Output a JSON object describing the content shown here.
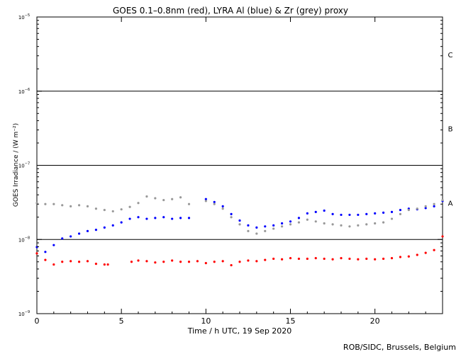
{
  "chart_data": {
    "type": "scatter",
    "title": "GOES 0.1–0.8nm (red), LYRA Al (blue) & Zr (grey) proxy",
    "xlabel": "Time / h UTC, 19 Sep 2020",
    "ylabel": "GOES Irradiance / (W m⁻²)",
    "x_ticks": [
      0,
      5,
      10,
      15,
      20
    ],
    "y_ticks": [
      {
        "exp": -9,
        "label": "10",
        "sup": "−9"
      },
      {
        "exp": -8,
        "label": "10",
        "sup": "−8"
      },
      {
        "exp": -7,
        "label": "10",
        "sup": "−7"
      },
      {
        "exp": -6,
        "label": "10",
        "sup": "−6"
      },
      {
        "exp": -5,
        "label": "10",
        "sup": "−5"
      }
    ],
    "xlim": [
      0,
      24
    ],
    "ylim_log10": [
      -9,
      -5
    ],
    "y_scale": "log",
    "flare_class_lines": [
      {
        "label": "A",
        "level": 1e-08
      },
      {
        "label": "B",
        "level": 1e-07
      },
      {
        "label": "C",
        "level": 1e-06
      }
    ],
    "series": [
      {
        "color": "#ff0000",
        "x": [
          0,
          0.5,
          1,
          1.5,
          2,
          2.5,
          3,
          3.5,
          4,
          4.2,
          5.6,
          6,
          6.5,
          7,
          7.5,
          8,
          8.5,
          9,
          9.5,
          10,
          10.5,
          11,
          11.5,
          12,
          12.5,
          13,
          13.5,
          14,
          14.5,
          15,
          15.5,
          16,
          16.5,
          17,
          17.5,
          18,
          18.5,
          19,
          19.5,
          20,
          20.5,
          21,
          21.5,
          22,
          22.5,
          23,
          23.5,
          24
        ],
        "y": [
          6.5e-09,
          5.3e-09,
          4.6e-09,
          5e-09,
          5.1e-09,
          5e-09,
          5.1e-09,
          4.7e-09,
          4.6e-09,
          4.6e-09,
          5e-09,
          5.2e-09,
          5.1e-09,
          4.9e-09,
          5e-09,
          5.2e-09,
          5e-09,
          5e-09,
          5.1e-09,
          4.8e-09,
          5e-09,
          5.1e-09,
          4.5e-09,
          5e-09,
          5.2e-09,
          5.1e-09,
          5.3e-09,
          5.5e-09,
          5.4e-09,
          5.6e-09,
          5.5e-09,
          5.5e-09,
          5.6e-09,
          5.5e-09,
          5.4e-09,
          5.6e-09,
          5.5e-09,
          5.4e-09,
          5.5e-09,
          5.4e-09,
          5.5e-09,
          5.6e-09,
          5.8e-09,
          5.9e-09,
          6.2e-09,
          6.6e-09,
          7.2e-09,
          1.1e-08
        ]
      },
      {
        "color": "#0000ff",
        "x": [
          0,
          0.5,
          1,
          1.5,
          2,
          2.5,
          3,
          3.5,
          4,
          4.5,
          5,
          5.5,
          6,
          6.5,
          7,
          7.5,
          8,
          8.5,
          9,
          9.5,
          10,
          10.5,
          11,
          11.5,
          12,
          12.5,
          13,
          13.5,
          14,
          14.5,
          15,
          15.5,
          16,
          16.5,
          17,
          17.5,
          18,
          18.5,
          19,
          19.5,
          20,
          20.5,
          21,
          21.5,
          22,
          22.5,
          23,
          23.5,
          24
        ],
        "y": [
          7.9e-09,
          6.8e-09,
          8.4e-09,
          1.03e-08,
          1.1e-08,
          1.2e-08,
          1.3e-08,
          1.35e-08,
          1.45e-08,
          1.55e-08,
          1.7e-08,
          1.9e-08,
          2e-08,
          1.9e-08,
          1.95e-08,
          2e-08,
          1.9e-08,
          1.95e-08,
          1.95e-08,
          null,
          3.5e-08,
          3.2e-08,
          2.8e-08,
          2.2e-08,
          1.8e-08,
          1.55e-08,
          1.45e-08,
          1.5e-08,
          1.55e-08,
          1.65e-08,
          1.75e-08,
          1.95e-08,
          2.25e-08,
          2.35e-08,
          2.45e-08,
          2.2e-08,
          2.15e-08,
          2.15e-08,
          2.15e-08,
          2.2e-08,
          2.25e-08,
          2.3e-08,
          2.35e-08,
          2.5e-08,
          2.6e-08,
          2.55e-08,
          2.65e-08,
          2.8e-08,
          3.3e-08
        ]
      },
      {
        "color": "#999999",
        "x": [
          0,
          0.5,
          1,
          1.5,
          2,
          2.5,
          3,
          3.5,
          4,
          4.5,
          5,
          5.5,
          6,
          6.5,
          7,
          7.5,
          8,
          8.5,
          9,
          9.5,
          10,
          10.5,
          11,
          11.5,
          12,
          12.5,
          13,
          13.5,
          14,
          14.5,
          15,
          15.5,
          16,
          16.5,
          17,
          17.5,
          18,
          18.5,
          19,
          19.5,
          20,
          20.5,
          21,
          21.5,
          22,
          22.5,
          23,
          23.5,
          24
        ],
        "y": [
          3.1e-08,
          3e-08,
          3e-08,
          2.9e-08,
          2.8e-08,
          2.9e-08,
          2.8e-08,
          2.6e-08,
          2.5e-08,
          2.4e-08,
          2.55e-08,
          2.75e-08,
          3.1e-08,
          3.8e-08,
          3.6e-08,
          3.4e-08,
          3.5e-08,
          3.7e-08,
          3e-08,
          null,
          3.3e-08,
          3e-08,
          2.6e-08,
          2e-08,
          1.6e-08,
          1.3e-08,
          1.2e-08,
          1.3e-08,
          1.4e-08,
          1.5e-08,
          1.6e-08,
          1.7e-08,
          1.85e-08,
          1.75e-08,
          1.65e-08,
          1.6e-08,
          1.55e-08,
          1.5e-08,
          1.55e-08,
          1.6e-08,
          1.65e-08,
          1.7e-08,
          1.9e-08,
          2.2e-08,
          2.5e-08,
          2.6e-08,
          2.8e-08,
          3e-08,
          3.4e-08
        ]
      }
    ]
  },
  "footer": {
    "credit": "ROB/SIDC, Brussels, Belgium"
  }
}
